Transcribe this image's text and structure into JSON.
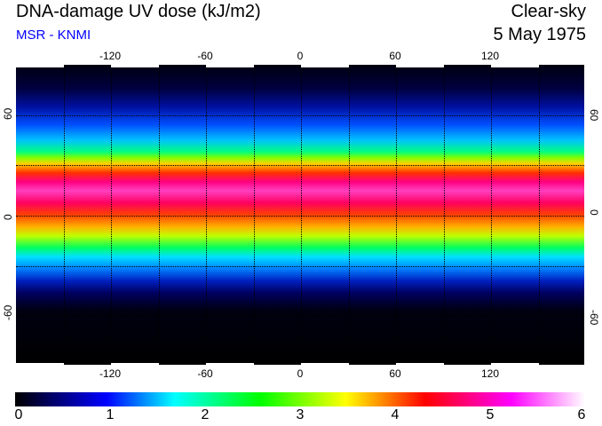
{
  "header": {
    "title": "DNA-damage UV dose (kJ/m2)",
    "credit": "MSR - KNMI",
    "condition": "Clear-sky",
    "date": "5 May 1975"
  },
  "map": {
    "lon_labels": [
      "-120",
      "-60",
      "0",
      "60",
      "120"
    ],
    "lat_labels": [
      "60",
      "0",
      "-60"
    ]
  },
  "colorbar": {
    "labels": [
      "0",
      "1",
      "2",
      "3",
      "4",
      "5",
      "6"
    ],
    "min": 0,
    "max": 6,
    "colors": [
      "#000000",
      "#0000ff",
      "#00ffff",
      "#00ff00",
      "#ffff00",
      "#ff0000",
      "#ff00ff",
      "#ffffff"
    ]
  }
}
